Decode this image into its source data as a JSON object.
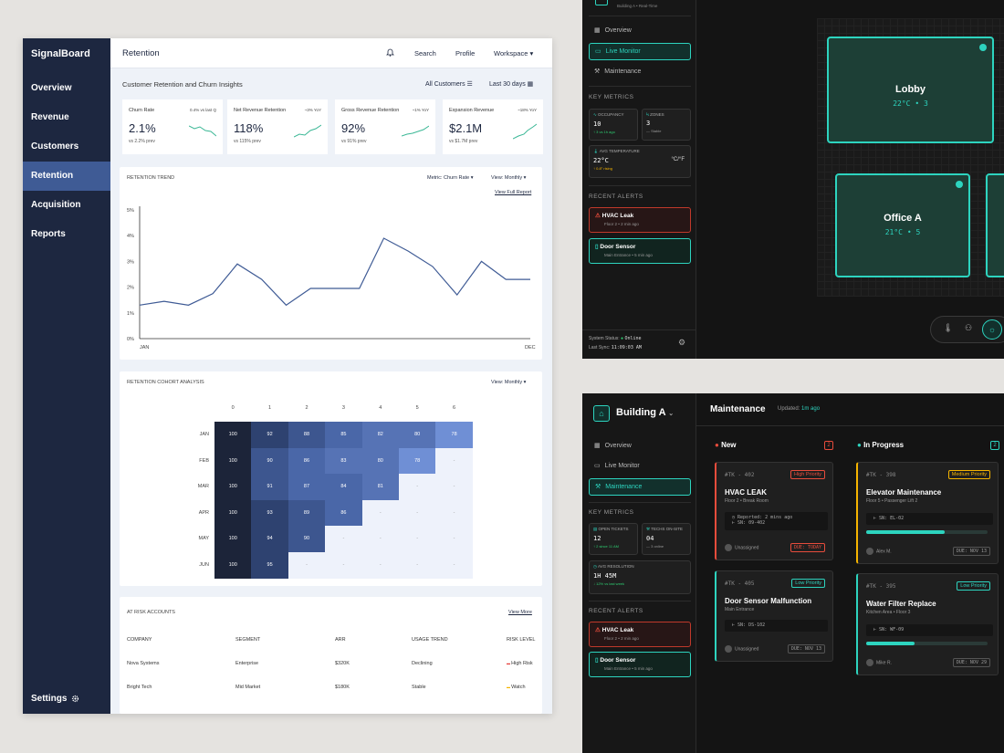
{
  "signalboard": {
    "logo": "SignalBoard",
    "nav": [
      "Overview",
      "Revenue",
      "Customers",
      "Retention",
      "Acquisition",
      "Reports"
    ],
    "active_nav": "Retention",
    "settings": "Settings",
    "page_title": "Retention",
    "topbar": {
      "search": "Search",
      "profile": "Profile",
      "workspace": "Workspace"
    },
    "section_title": "Customer Retention and Churn Insights",
    "filter_customers": "All Customers",
    "filter_range": "Last 30 days",
    "kpis": [
      {
        "label": "Churn Rate",
        "delta": "0.4% vs last Q",
        "value": "2.1%",
        "sub": "vs 2.2% prev"
      },
      {
        "label": "Net Revenue Retention",
        "delta": "~3% YoY",
        "value": "118%",
        "sub": "vs 115% prev"
      },
      {
        "label": "Gross Revenue Retention",
        "delta": "~1% YoY",
        "value": "92%",
        "sub": "vs 91% prev"
      },
      {
        "label": "Expansion Revenue",
        "delta": "~18% YoY",
        "value": "$2.1M",
        "sub": "vs $1.7M prev"
      }
    ],
    "trend": {
      "title": "RETENTION TREND",
      "metric": "Metric: Churn Rate",
      "view": "View: Monthly",
      "link": "View Full Report"
    },
    "cohort": {
      "title": "RETENTION COHORT ANALYSIS",
      "view": "View: Monthly",
      "cols": [
        "0",
        "1",
        "2",
        "3",
        "4",
        "5",
        "6"
      ],
      "rows": [
        {
          "label": "JAN",
          "values": [
            "100",
            "92",
            "88",
            "85",
            "82",
            "80",
            "78"
          ]
        },
        {
          "label": "FEB",
          "values": [
            "100",
            "90",
            "86",
            "83",
            "80",
            "78",
            "-"
          ]
        },
        {
          "label": "MAR",
          "values": [
            "100",
            "91",
            "87",
            "84",
            "81",
            "-",
            "-"
          ]
        },
        {
          "label": "APR",
          "values": [
            "100",
            "93",
            "89",
            "86",
            "-",
            "-",
            "-"
          ]
        },
        {
          "label": "MAY",
          "values": [
            "100",
            "94",
            "90",
            "-",
            "-",
            "-",
            "-"
          ]
        },
        {
          "label": "JUN",
          "values": [
            "100",
            "95",
            "-",
            "-",
            "-",
            "-",
            "-"
          ]
        }
      ]
    },
    "at_risk": {
      "title": "AT RISK ACCOUNTS",
      "link": "View More",
      "headers": [
        "COMPANY",
        "SEGMENT",
        "ARR",
        "USAGE TREND",
        "RISK LEVEL"
      ],
      "rows": [
        {
          "company": "Nova Systems",
          "segment": "Enterprise",
          "arr": "$320K",
          "trend": "Declining",
          "risk": "High Risk",
          "risk_color": "#e53935"
        },
        {
          "company": "Bright Tech",
          "segment": "Mid Market",
          "arr": "$180K",
          "trend": "Stable",
          "risk": "Watch",
          "risk_color": "#f5b400"
        }
      ]
    }
  },
  "chart_data": {
    "type": "line",
    "title": "RETENTION TREND",
    "x_start": "JAN",
    "x_end": "DEC",
    "y_ticks": [
      "5%",
      "4%",
      "3%",
      "2%",
      "1%",
      "0%"
    ],
    "ylim": [
      0,
      5
    ],
    "values": [
      1.3,
      1.45,
      1.3,
      1.75,
      2.9,
      2.3,
      1.3,
      1.95,
      1.95,
      1.95,
      3.9,
      3.4,
      2.8,
      1.7,
      3.0,
      2.3,
      2.3
    ],
    "grid": false
  },
  "building_monitor": {
    "subtitle": "Building A • Real-Time",
    "nav": [
      "Overview",
      "Live Monitor",
      "Maintenance"
    ],
    "metrics_title": "KEY METRICS",
    "metrics": [
      {
        "title": "OCCUPANCY",
        "value": "10",
        "sub": "↑ 3 vs 1h ago"
      },
      {
        "title": "ZONES",
        "value": "3",
        "sub": "— Stable"
      },
      {
        "title": "AVG TEMPERATURE",
        "value": "22°C",
        "sub": "↑ 0.8° rising",
        "unit": "°C/°F"
      }
    ],
    "alerts_title": "RECENT ALERTS",
    "alerts": [
      {
        "title": "HVAC Leak",
        "sub": "Floor 2 • 2 min ago"
      },
      {
        "title": "Door Sensor",
        "sub": "Main Entrance • 5 min ago"
      }
    ],
    "rooms": [
      {
        "name": "Lobby",
        "temp": "22°C • 3"
      },
      {
        "name": "Office A",
        "temp": "21°C • 5"
      }
    ],
    "status_label": "System Status:",
    "status_value": "Online",
    "sync_label": "Last Sync:",
    "sync_value": "11:09:03 AM",
    "accent": "#2dd4bf"
  },
  "building_tickets": {
    "building": "Building A",
    "nav": [
      "Overview",
      "Live Monitor",
      "Maintenance"
    ],
    "metrics_title": "KEY METRICS",
    "metrics": [
      {
        "title": "OPEN TICKETS",
        "value": "12",
        "sub": "↑ 2 since 11 AM"
      },
      {
        "title": "TECHS ON-SITE",
        "value": "04",
        "sub": "— 3 online"
      },
      {
        "title": "AVG RESOLUTION",
        "value": "1H 45M",
        "sub": "↓ 12% vs last week"
      }
    ],
    "alerts_title": "RECENT ALERTS",
    "alerts": [
      {
        "title": "HVAC Leak",
        "sub": "Floor 2 • 2 min ago"
      },
      {
        "title": "Door Sensor",
        "sub": "Main Entrance • 5 min ago"
      }
    ],
    "header": "Maintenance",
    "updated_label": "Updated:",
    "updated_value": "1m ago",
    "col_new": "New",
    "col_new_count": "2",
    "col_prog": "In Progress",
    "col_prog_count": "2",
    "tickets_new": [
      {
        "id": "#TK - 402",
        "priority": "High Priority",
        "title": "HVAC LEAK",
        "sub": "Floor 2 • Break Room",
        "line1": "Reported: 2 mins ago",
        "line2": "SN: 09-402",
        "assignee": "Unassigned",
        "due": "DUE: TODAY"
      },
      {
        "id": "#TK - 405",
        "priority": "Low Priority",
        "title": "Door Sensor Malfunction",
        "sub": "Main Entrance",
        "line1": "SN: DS-102",
        "assignee": "Unassigned",
        "due": "DUE: NOV 13"
      }
    ],
    "tickets_prog": [
      {
        "id": "#TK - 398",
        "priority": "Medium Priority",
        "title": "Elevator Maintenance",
        "sub": "Floor 5 • Passenger Lift 2",
        "line1": "SN: EL-02",
        "assignee": "Alex M.",
        "due": "DUE: NOV 13",
        "progress": 0.65
      },
      {
        "id": "#TK - 395",
        "priority": "Low Priority",
        "title": "Water Filter Replace",
        "sub": "Kitchen Area • Floor 3",
        "line1": "SN: WF-09",
        "assignee": "Mike R.",
        "due": "DUE: NOV 29",
        "progress": 0.4
      }
    ]
  }
}
